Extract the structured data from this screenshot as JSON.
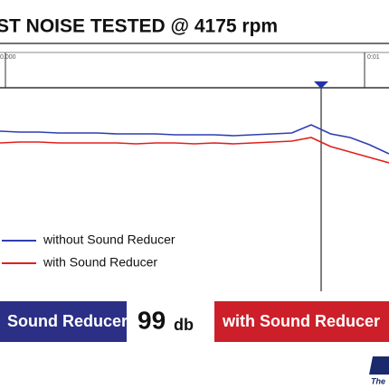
{
  "chart_data": {
    "type": "line",
    "title": "ST NOISE TESTED @ 4175 rpm",
    "time_labels": [
      "0.000",
      "0:01"
    ],
    "ylim": [
      0,
      100
    ],
    "series": [
      {
        "name": "without Sound Reducer",
        "color": "#2f3fb0",
        "values": [
          55,
          54,
          54,
          53,
          53,
          53,
          52,
          52,
          52,
          51,
          51,
          51,
          50,
          51,
          52,
          53,
          62,
          52,
          48,
          40,
          30
        ]
      },
      {
        "name": "with Sound Reducer",
        "color": "#e0201c",
        "values": [
          42,
          43,
          43,
          42,
          42,
          42,
          42,
          41,
          42,
          42,
          41,
          42,
          41,
          42,
          43,
          44,
          48,
          38,
          32,
          26,
          20
        ]
      }
    ],
    "comparison": {
      "left": "Sound Reducer",
      "value": "99",
      "unit": "db",
      "right": "with Sound Reducer"
    },
    "logo_text": "The"
  }
}
